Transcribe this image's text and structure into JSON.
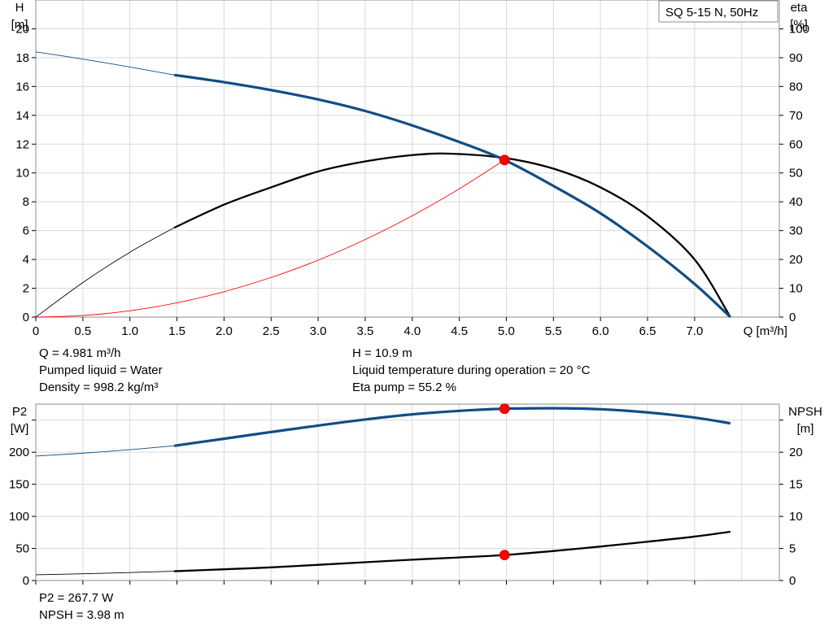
{
  "chart_data": [
    {
      "type": "line",
      "title": "SQ 5-15 N, 50Hz",
      "xlabel": "Q [m³/h]",
      "ylabel_left": [
        "H",
        "[m]"
      ],
      "ylabel_right": [
        "eta",
        "[%]"
      ],
      "xlim": [
        0,
        7.9
      ],
      "ylim_left": [
        0,
        22
      ],
      "ylim_right": [
        0,
        110
      ],
      "xticks": [
        "0",
        "0.5",
        "1.0",
        "1.5",
        "2.0",
        "2.5",
        "3.0",
        "3.5",
        "4.0",
        "4.5",
        "5.0",
        "5.5",
        "6.0",
        "6.5",
        "7.0"
      ],
      "yticks_left": [
        "0",
        "2",
        "4",
        "6",
        "8",
        "10",
        "12",
        "14",
        "16",
        "18",
        "20"
      ],
      "yticks_right": [
        "0",
        "10",
        "20",
        "30",
        "40",
        "50",
        "60",
        "70",
        "80",
        "90",
        "100"
      ],
      "grid": true,
      "series": [
        {
          "name": "H",
          "axis": "left",
          "color": "#124d84",
          "thin_until": 1.47,
          "points": [
            [
              0,
              18.4
            ],
            [
              0.5,
              17.9
            ],
            [
              1.0,
              17.35
            ],
            [
              1.47,
              16.8
            ],
            [
              2.0,
              16.3
            ],
            [
              2.5,
              15.75
            ],
            [
              3.0,
              15.1
            ],
            [
              3.5,
              14.3
            ],
            [
              4.0,
              13.3
            ],
            [
              4.5,
              12.15
            ],
            [
              4.981,
              10.9
            ],
            [
              5.5,
              9.1
            ],
            [
              6.0,
              7.2
            ],
            [
              6.5,
              4.9
            ],
            [
              7.0,
              2.3
            ],
            [
              7.38,
              0
            ]
          ]
        },
        {
          "name": "eta",
          "axis": "right",
          "color": "#000000",
          "thin_until": 1.47,
          "points": [
            [
              0,
              0
            ],
            [
              0.5,
              12
            ],
            [
              1.0,
              22.5
            ],
            [
              1.47,
              31
            ],
            [
              2.0,
              39
            ],
            [
              2.5,
              45
            ],
            [
              3.0,
              50.5
            ],
            [
              3.5,
              54
            ],
            [
              4.0,
              56.2
            ],
            [
              4.4,
              56.7
            ],
            [
              4.981,
              55.2
            ],
            [
              5.5,
              51.5
            ],
            [
              6.0,
              45
            ],
            [
              6.5,
              35
            ],
            [
              7.0,
              20
            ],
            [
              7.38,
              0
            ]
          ]
        },
        {
          "name": "system curve",
          "axis": "left",
          "color": "#ff0000",
          "thin_until": 99,
          "points": [
            [
              0,
              0
            ],
            [
              0.5,
              0.11
            ],
            [
              1.0,
              0.44
            ],
            [
              1.5,
              0.99
            ],
            [
              2.0,
              1.76
            ],
            [
              2.5,
              2.75
            ],
            [
              3.0,
              3.95
            ],
            [
              3.5,
              5.38
            ],
            [
              4.0,
              7.03
            ],
            [
              4.5,
              8.9
            ],
            [
              4.981,
              10.9
            ]
          ]
        }
      ],
      "operating_point": {
        "x": 4.981,
        "y": 10.9,
        "y_right": 55.2,
        "color": "#ff0000"
      }
    },
    {
      "type": "line",
      "xlim": [
        0,
        7.9
      ],
      "ylabel_left": [
        "P2",
        "[W]"
      ],
      "ylabel_right": [
        "NPSH",
        "[m]"
      ],
      "ylim_left": [
        0,
        275
      ],
      "ylim_right": [
        0,
        27.5
      ],
      "yticks_left": [
        "0",
        "50",
        "100",
        "150",
        "200"
      ],
      "yticks_right": [
        "0",
        "5",
        "10",
        "15",
        "20"
      ],
      "grid": true,
      "series": [
        {
          "name": "P2",
          "axis": "left",
          "color": "#124d84",
          "thin_until": 1.47,
          "points": [
            [
              0,
              194
            ],
            [
              0.5,
              198.5
            ],
            [
              1.0,
              204
            ],
            [
              1.47,
              210
            ],
            [
              2.0,
              221
            ],
            [
              2.5,
              231.5
            ],
            [
              3.0,
              241.5
            ],
            [
              3.5,
              251
            ],
            [
              4.0,
              259
            ],
            [
              4.5,
              264.5
            ],
            [
              4.981,
              267.7
            ],
            [
              5.5,
              268.5
            ],
            [
              6.0,
              267
            ],
            [
              6.5,
              262
            ],
            [
              7.0,
              254
            ],
            [
              7.38,
              245
            ]
          ]
        },
        {
          "name": "NPSH",
          "axis": "right",
          "color": "#000000",
          "thin_until": 1.47,
          "points": [
            [
              0,
              0.9
            ],
            [
              0.5,
              1.05
            ],
            [
              1.0,
              1.25
            ],
            [
              1.47,
              1.45
            ],
            [
              2.0,
              1.75
            ],
            [
              2.5,
              2.05
            ],
            [
              3.0,
              2.45
            ],
            [
              3.5,
              2.85
            ],
            [
              4.0,
              3.25
            ],
            [
              4.5,
              3.6
            ],
            [
              4.981,
              3.98
            ],
            [
              5.5,
              4.6
            ],
            [
              6.0,
              5.3
            ],
            [
              6.5,
              6.05
            ],
            [
              7.0,
              6.85
            ],
            [
              7.38,
              7.6
            ]
          ]
        }
      ],
      "operating_points": [
        {
          "x": 4.981,
          "y": 267.7,
          "axis": "left",
          "color": "#ff0000"
        },
        {
          "x": 4.981,
          "y": 3.98,
          "axis": "right",
          "color": "#ff0000"
        }
      ]
    }
  ],
  "info_top": {
    "q": "Q = 4.981 m³/h",
    "liquid": "Pumped liquid = Water",
    "density": "Density = 998.2 kg/m³",
    "h": "H = 10.9 m",
    "temperature": "Liquid temperature during operation = 20 °C",
    "eta": "Eta pump = 55.2 %"
  },
  "info_bottom": {
    "p2": "P2 = 267.7 W",
    "npsh": "NPSH = 3.98 m"
  }
}
